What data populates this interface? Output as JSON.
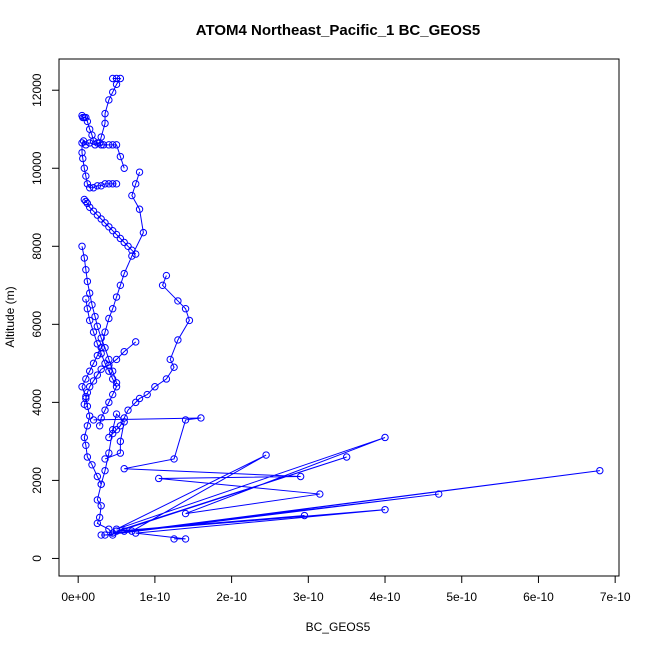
{
  "chart_data": {
    "type": "line",
    "title": "ATOM4 Northeast_Pacific_1 BC_GEOS5",
    "xlabel": "BC_GEOS5",
    "ylabel": "Altitude (m)",
    "xlim": [
      -2.5e-11,
      7.05e-10
    ],
    "ylim": [
      -450,
      12800
    ],
    "x_ticks": [
      0,
      1e-10,
      2e-10,
      3e-10,
      4e-10,
      5e-10,
      6e-10,
      7e-10
    ],
    "x_tick_labels": [
      "0e+00",
      "1e-10",
      "2e-10",
      "3e-10",
      "4e-10",
      "5e-10",
      "6e-10",
      "7e-10"
    ],
    "y_ticks": [
      0,
      2000,
      4000,
      6000,
      8000,
      10000,
      12000
    ],
    "y_tick_labels": [
      "0",
      "2000",
      "4000",
      "6000",
      "8000",
      "10000",
      "12000"
    ],
    "grid": false,
    "color": "#0000ff",
    "marker": "open-circle",
    "series": [
      {
        "x": [
          4.5e-11,
          5e-11,
          5.5e-11,
          5e-11,
          4.5e-11,
          4e-11,
          3.5e-11,
          3.5e-11,
          3e-11,
          2.8e-11,
          2.2e-11,
          1.5e-11,
          1e-11,
          7e-12,
          5e-12,
          5e-12,
          6e-12,
          8e-12,
          1e-11,
          1.2e-11,
          1.5e-11,
          2e-11,
          2.5e-11,
          3e-11,
          3.5e-11,
          4e-11,
          4.5e-11,
          5e-11
        ],
        "y": [
          12300,
          12300,
          12300,
          12150,
          11950,
          11750,
          11400,
          11150,
          10800,
          10650,
          10600,
          10650,
          10600,
          10700,
          10650,
          10400,
          10250,
          10000,
          9800,
          9600,
          9500,
          9500,
          9550,
          9550,
          9600,
          9600,
          9600,
          9600
        ]
      },
      {
        "x": [
          5e-12,
          6e-12,
          8e-12,
          1e-11,
          1.2e-11,
          1.5e-11,
          1.8e-11,
          2e-11,
          2.5e-11,
          3e-11,
          3.3e-11,
          4e-11,
          4.5e-11,
          5e-11,
          5.5e-11,
          6e-11
        ],
        "y": [
          11350,
          11300,
          11300,
          11300,
          11200,
          11000,
          10850,
          10700,
          10650,
          10600,
          10600,
          10600,
          10600,
          10600,
          10300,
          10000
        ]
      },
      {
        "x": [
          8e-11,
          7.5e-11,
          7e-11,
          8e-11,
          8.5e-11,
          7e-11,
          6e-11,
          5.5e-11,
          5e-11,
          4.5e-11,
          4e-11,
          3.5e-11,
          3e-11,
          2.5e-11,
          2e-11,
          1.5e-11,
          1e-11,
          5e-12,
          1e-11,
          1.2e-11,
          1.5e-11,
          1.2e-11,
          8e-12,
          1e-11,
          1.2e-11,
          1.8e-11,
          2.5e-11,
          3e-11
        ],
        "y": [
          9900,
          9600,
          9300,
          8950,
          8350,
          7750,
          7300,
          7000,
          6700,
          6400,
          6150,
          5800,
          5400,
          5200,
          5000,
          4800,
          4600,
          4400,
          4150,
          3900,
          3650,
          3400,
          3100,
          2900,
          2600,
          2400,
          2100,
          1900
        ]
      },
      {
        "x": [
          1.15e-10,
          1.1e-10,
          1.3e-10,
          1.4e-10,
          1.45e-10,
          1.3e-10,
          1.2e-10,
          1.25e-10,
          1.15e-10,
          1e-10,
          9e-11,
          8e-11,
          7.5e-11,
          6.5e-11,
          6e-11,
          5.5e-11,
          5e-11,
          4.5e-11,
          4e-11
        ],
        "y": [
          7250,
          7000,
          6600,
          6400,
          6100,
          5600,
          5100,
          4900,
          4600,
          4400,
          4200,
          4100,
          4000,
          3800,
          3600,
          3400,
          3300,
          3200,
          3100
        ]
      },
      {
        "x": [
          7.5e-11,
          6e-11,
          5e-11,
          4e-11,
          3e-11,
          2.5e-11,
          2e-11,
          1.5e-11,
          1.2e-11,
          1e-11,
          8e-12
        ],
        "y": [
          5550,
          5300,
          5100,
          4950,
          4850,
          4700,
          4550,
          4400,
          4250,
          4100,
          3950
        ]
      },
      {
        "x": [
          2e-11,
          1.6e-10,
          1.4e-10,
          1.25e-10,
          6e-11,
          2.9e-10,
          1.05e-10,
          3.15e-10,
          1.4e-10,
          4e-10,
          5e-11,
          2.45e-10,
          7e-11,
          6.8e-10,
          3.5e-11,
          4.7e-10,
          4.5e-11,
          3.5e-10,
          5e-11,
          2.95e-10,
          6e-11,
          4e-10,
          7.5e-11,
          1.4e-10,
          1.25e-10
        ],
        "y": [
          3550,
          3600,
          3550,
          2550,
          2300,
          2100,
          2050,
          1650,
          1150,
          3100,
          750,
          2650,
          700,
          2250,
          600,
          1650,
          650,
          2600,
          700,
          1100,
          700,
          1250,
          650,
          500,
          500
        ]
      },
      {
        "x": [
          3.5e-11,
          5.5e-11,
          5.5e-11,
          6e-11,
          5e-11,
          4.5e-11,
          4e-11,
          3.5e-11,
          3e-11,
          2.5e-11,
          3e-11,
          2.8e-11,
          2.5e-11,
          4e-11,
          4.5e-11,
          3e-11
        ],
        "y": [
          2550,
          2700,
          3000,
          3500,
          3700,
          3300,
          2700,
          2250,
          1900,
          1500,
          1350,
          1050,
          900,
          750,
          600,
          600
        ]
      },
      {
        "x": [
          8e-12,
          1e-11,
          1.2e-11,
          1.5e-11,
          2e-11,
          2.5e-11,
          3e-11,
          3.5e-11,
          4e-11,
          4.5e-11,
          5e-11,
          5.5e-11,
          6e-11,
          6.5e-11,
          7e-11,
          7.5e-11
        ],
        "y": [
          9200,
          9150,
          9100,
          9000,
          8900,
          8800,
          8700,
          8600,
          8500,
          8400,
          8300,
          8200,
          8100,
          8000,
          7900,
          7800
        ]
      },
      {
        "x": [
          5e-12,
          8e-12,
          1e-11,
          1.2e-11,
          1.5e-11,
          1.8e-11,
          2.2e-11,
          2.5e-11,
          3e-11,
          3.5e-11,
          4e-11,
          4.5e-11,
          5e-11
        ],
        "y": [
          8000,
          7700,
          7400,
          7100,
          6800,
          6500,
          6200,
          5950,
          5650,
          5400,
          5100,
          4800,
          4500
        ]
      },
      {
        "x": [
          1e-11,
          1.2e-11,
          1.5e-11,
          2e-11,
          2.5e-11,
          3e-11,
          3.5e-11,
          4e-11,
          4.5e-11,
          5e-11,
          4.5e-11,
          4e-11,
          3.5e-11,
          3e-11,
          2.8e-11
        ],
        "y": [
          6650,
          6400,
          6100,
          5800,
          5500,
          5250,
          5000,
          4800,
          4600,
          4400,
          4200,
          4000,
          3800,
          3600,
          3400
        ]
      }
    ]
  }
}
